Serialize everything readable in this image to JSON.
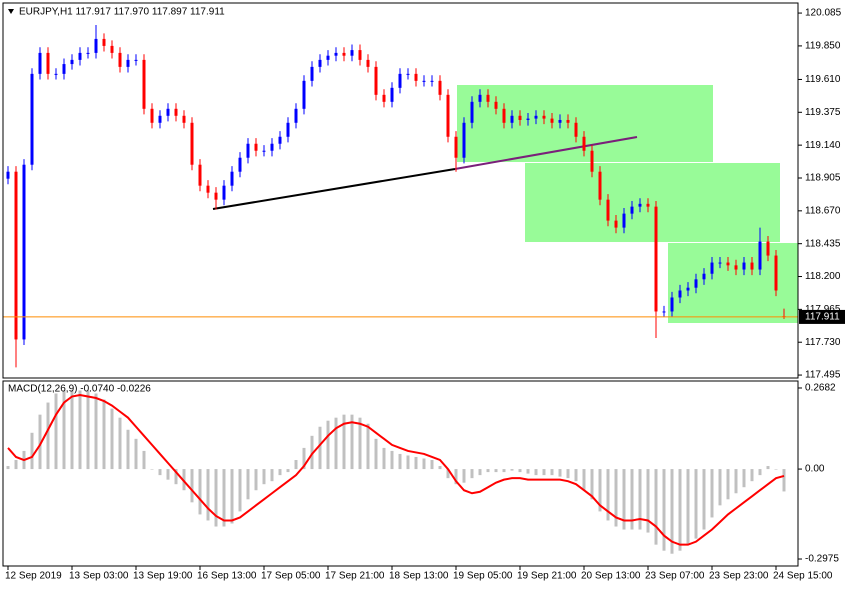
{
  "chart_data": {
    "type": "candlestick",
    "title": "EURJPY,H1  117.917 117.970 117.897 117.911",
    "categories": [
      "12 Sep 2019",
      null,
      null,
      null,
      null,
      null,
      null,
      null,
      "13 Sep 03:00",
      null,
      null,
      null,
      null,
      null,
      null,
      null,
      "13 Sep 19:00",
      null,
      null,
      null,
      null,
      null,
      null,
      null,
      "16 Sep 13:00",
      null,
      null,
      null,
      null,
      null,
      null,
      null,
      "17 Sep 05:00",
      null,
      null,
      null,
      null,
      null,
      null,
      null,
      "17 Sep 21:00",
      null,
      null,
      null,
      null,
      null,
      null,
      null,
      "18 Sep 13:00",
      null,
      null,
      null,
      null,
      null,
      null,
      null,
      "19 Sep 05:00",
      null,
      null,
      null,
      null,
      null,
      null,
      null,
      "19 Sep 21:00",
      null,
      null,
      null,
      null,
      null,
      null,
      null,
      "20 Sep 13:00",
      null,
      null,
      null,
      null,
      null,
      null,
      null,
      "23 Sep 07:00",
      null,
      null,
      null,
      null,
      null,
      null,
      null,
      "23 Sep 23:00",
      null,
      null,
      null,
      null,
      null,
      null,
      null,
      "24 Sep 15:00",
      null
    ],
    "open": [
      118.9,
      118.95,
      117.75,
      119.0,
      119.65,
      119.8,
      119.65,
      119.65,
      119.72,
      119.75,
      119.8,
      119.8,
      119.9,
      119.85,
      119.8,
      119.7,
      119.75,
      119.75,
      119.4,
      119.3,
      119.35,
      119.4,
      119.35,
      119.3,
      119.0,
      118.85,
      118.8,
      118.75,
      118.85,
      118.95,
      119.05,
      119.15,
      119.1,
      119.1,
      119.15,
      119.2,
      119.3,
      119.4,
      119.6,
      119.7,
      119.75,
      119.78,
      119.8,
      119.78,
      119.82,
      119.75,
      119.7,
      119.5,
      119.45,
      119.55,
      119.65,
      119.65,
      119.6,
      119.6,
      119.6,
      119.5,
      119.2,
      119.05,
      119.3,
      119.45,
      119.5,
      119.45,
      119.4,
      119.3,
      119.35,
      119.32,
      119.33,
      119.35,
      119.33,
      119.3,
      119.32,
      119.3,
      119.2,
      119.1,
      118.95,
      118.75,
      118.6,
      118.55,
      118.65,
      118.7,
      118.72,
      118.7,
      117.95,
      117.95,
      118.05,
      118.1,
      118.12,
      118.18,
      118.22,
      118.3,
      118.3,
      118.28,
      118.25,
      118.3,
      118.25,
      118.45,
      118.35,
      117.917
    ],
    "high": [
      118.99,
      118.99,
      119.04,
      119.69,
      119.84,
      119.84,
      119.69,
      119.76,
      119.79,
      119.84,
      119.84,
      120.0,
      119.94,
      119.89,
      119.84,
      119.79,
      119.79,
      119.79,
      119.44,
      119.39,
      119.44,
      119.44,
      119.39,
      119.34,
      119.04,
      118.89,
      118.84,
      118.89,
      118.99,
      119.09,
      119.19,
      119.19,
      119.14,
      119.19,
      119.24,
      119.34,
      119.44,
      119.64,
      119.74,
      119.79,
      119.82,
      119.84,
      119.84,
      119.86,
      119.86,
      119.79,
      119.74,
      119.54,
      119.59,
      119.69,
      119.69,
      119.69,
      119.64,
      119.64,
      119.64,
      119.54,
      119.24,
      119.34,
      119.49,
      119.54,
      119.54,
      119.49,
      119.44,
      119.39,
      119.39,
      119.37,
      119.39,
      119.39,
      119.37,
      119.36,
      119.36,
      119.34,
      119.24,
      119.14,
      118.99,
      118.79,
      118.64,
      118.69,
      118.74,
      118.76,
      118.76,
      118.74,
      117.99,
      118.09,
      118.14,
      118.16,
      118.22,
      118.26,
      118.34,
      118.34,
      118.34,
      118.32,
      118.34,
      118.34,
      118.55,
      118.49,
      118.39,
      117.97
    ],
    "low": [
      118.86,
      117.55,
      117.71,
      118.96,
      119.61,
      119.61,
      119.61,
      119.61,
      119.68,
      119.71,
      119.76,
      119.76,
      119.81,
      119.76,
      119.66,
      119.66,
      119.71,
      119.36,
      119.26,
      119.26,
      119.31,
      119.31,
      119.26,
      118.96,
      118.81,
      118.76,
      118.68,
      118.71,
      118.81,
      118.91,
      119.01,
      119.06,
      119.06,
      119.06,
      119.11,
      119.16,
      119.26,
      119.36,
      119.56,
      119.66,
      119.71,
      119.74,
      119.74,
      119.74,
      119.71,
      119.66,
      119.46,
      119.41,
      119.41,
      119.51,
      119.61,
      119.56,
      119.56,
      119.56,
      119.46,
      119.16,
      118.95,
      119.01,
      119.26,
      119.41,
      119.41,
      119.36,
      119.26,
      119.26,
      119.28,
      119.28,
      119.29,
      119.29,
      119.26,
      119.26,
      119.26,
      119.16,
      119.06,
      118.91,
      118.71,
      118.56,
      118.51,
      118.51,
      118.61,
      118.66,
      118.66,
      117.76,
      117.91,
      117.91,
      118.01,
      118.06,
      118.08,
      118.14,
      118.18,
      118.26,
      118.24,
      118.21,
      118.21,
      118.21,
      118.21,
      118.31,
      118.06,
      117.897
    ],
    "close": [
      118.95,
      117.75,
      119.0,
      119.65,
      119.8,
      119.65,
      119.65,
      119.72,
      119.75,
      119.8,
      119.8,
      119.9,
      119.85,
      119.8,
      119.7,
      119.75,
      119.75,
      119.4,
      119.3,
      119.35,
      119.4,
      119.35,
      119.3,
      119.0,
      118.85,
      118.8,
      118.75,
      118.85,
      118.95,
      119.05,
      119.15,
      119.1,
      119.1,
      119.15,
      119.2,
      119.3,
      119.4,
      119.6,
      119.7,
      119.75,
      119.78,
      119.8,
      119.78,
      119.82,
      119.75,
      119.7,
      119.5,
      119.45,
      119.55,
      119.65,
      119.65,
      119.6,
      119.6,
      119.6,
      119.5,
      119.2,
      119.05,
      119.3,
      119.45,
      119.5,
      119.45,
      119.4,
      119.3,
      119.35,
      119.32,
      119.33,
      119.35,
      119.33,
      119.3,
      119.32,
      119.3,
      119.2,
      119.1,
      118.95,
      118.75,
      118.6,
      118.55,
      118.65,
      118.7,
      118.72,
      118.7,
      117.95,
      117.95,
      118.05,
      118.1,
      118.12,
      118.18,
      118.22,
      118.3,
      118.3,
      118.28,
      118.25,
      118.3,
      118.25,
      118.45,
      118.35,
      118.1,
      117.911
    ],
    "up_color": "#0000ff",
    "down_color": "#ff0000",
    "ylim": [
      117.474,
      120.157
    ],
    "yticks": [
      120.085,
      {
        "value": 119.85,
        "label": "119.850"
      },
      {
        "value": 119.61,
        "label": "119.610"
      },
      119.375,
      {
        "value": 119.14,
        "label": "119.140"
      },
      118.905,
      {
        "value": 118.67,
        "label": "118.670"
      },
      118.435,
      {
        "value": 118.2,
        "label": "118.200"
      },
      117.965,
      {
        "value": 117.73,
        "label": "117.730"
      },
      117.495
    ],
    "indicator": {
      "type": "macd",
      "title": "MACD(12,26,9) -0.0740 -0.0226",
      "histogram": {
        "color": "#c0c0c0",
        "values": [
          0.01,
          0.03,
          0.06,
          0.12,
          0.18,
          0.22,
          0.25,
          0.26,
          0.26,
          0.26,
          0.26,
          0.25,
          0.23,
          0.2,
          0.17,
          0.13,
          0.1,
          0.06,
          0.0,
          -0.02,
          -0.035,
          -0.05,
          -0.07,
          -0.11,
          -0.15,
          -0.17,
          -0.19,
          -0.19,
          -0.18,
          -0.14,
          -0.1,
          -0.07,
          -0.05,
          -0.04,
          -0.02,
          -0.01,
          0.03,
          0.07,
          0.11,
          0.14,
          0.16,
          0.17,
          0.18,
          0.18,
          0.17,
          0.15,
          0.1,
          0.07,
          0.06,
          0.05,
          0.045,
          0.04,
          0.035,
          0.03,
          0.01,
          -0.03,
          -0.05,
          -0.045,
          -0.03,
          -0.02,
          -0.01,
          -0.01,
          -0.01,
          -0.005,
          -0.01,
          -0.015,
          -0.02,
          -0.02,
          -0.02,
          -0.025,
          -0.03,
          -0.04,
          -0.07,
          -0.1,
          -0.14,
          -0.17,
          -0.19,
          -0.2,
          -0.2,
          -0.2,
          -0.21,
          -0.25,
          -0.27,
          -0.28,
          -0.27,
          -0.25,
          -0.23,
          -0.2,
          -0.16,
          -0.12,
          -0.1,
          -0.08,
          -0.06,
          -0.04,
          -0.02,
          0.01,
          0.0,
          -0.074
        ]
      },
      "signal": {
        "color": "#ff0000",
        "values": [
          0.07,
          0.04,
          0.03,
          0.04,
          0.08,
          0.13,
          0.18,
          0.22,
          0.24,
          0.245,
          0.24,
          0.235,
          0.225,
          0.21,
          0.19,
          0.17,
          0.14,
          0.11,
          0.08,
          0.05,
          0.02,
          -0.01,
          -0.04,
          -0.07,
          -0.1,
          -0.13,
          -0.155,
          -0.17,
          -0.17,
          -0.16,
          -0.14,
          -0.12,
          -0.1,
          -0.08,
          -0.06,
          -0.04,
          -0.02,
          0.01,
          0.05,
          0.08,
          0.11,
          0.135,
          0.15,
          0.155,
          0.15,
          0.14,
          0.12,
          0.1,
          0.08,
          0.07,
          0.06,
          0.055,
          0.05,
          0.04,
          0.03,
          0.0,
          -0.04,
          -0.07,
          -0.08,
          -0.075,
          -0.06,
          -0.045,
          -0.035,
          -0.03,
          -0.03,
          -0.035,
          -0.035,
          -0.035,
          -0.035,
          -0.035,
          -0.04,
          -0.05,
          -0.07,
          -0.09,
          -0.12,
          -0.14,
          -0.16,
          -0.17,
          -0.17,
          -0.165,
          -0.17,
          -0.19,
          -0.22,
          -0.24,
          -0.25,
          -0.25,
          -0.24,
          -0.22,
          -0.2,
          -0.175,
          -0.15,
          -0.13,
          -0.11,
          -0.09,
          -0.07,
          -0.05,
          -0.03,
          -0.0226
        ]
      },
      "ylim": [
        -0.3206,
        0.2913
      ],
      "yticks": [
        0.2682,
        {
          "value": 0,
          "label": "0.00"
        },
        -0.2975
      ]
    }
  }
}
